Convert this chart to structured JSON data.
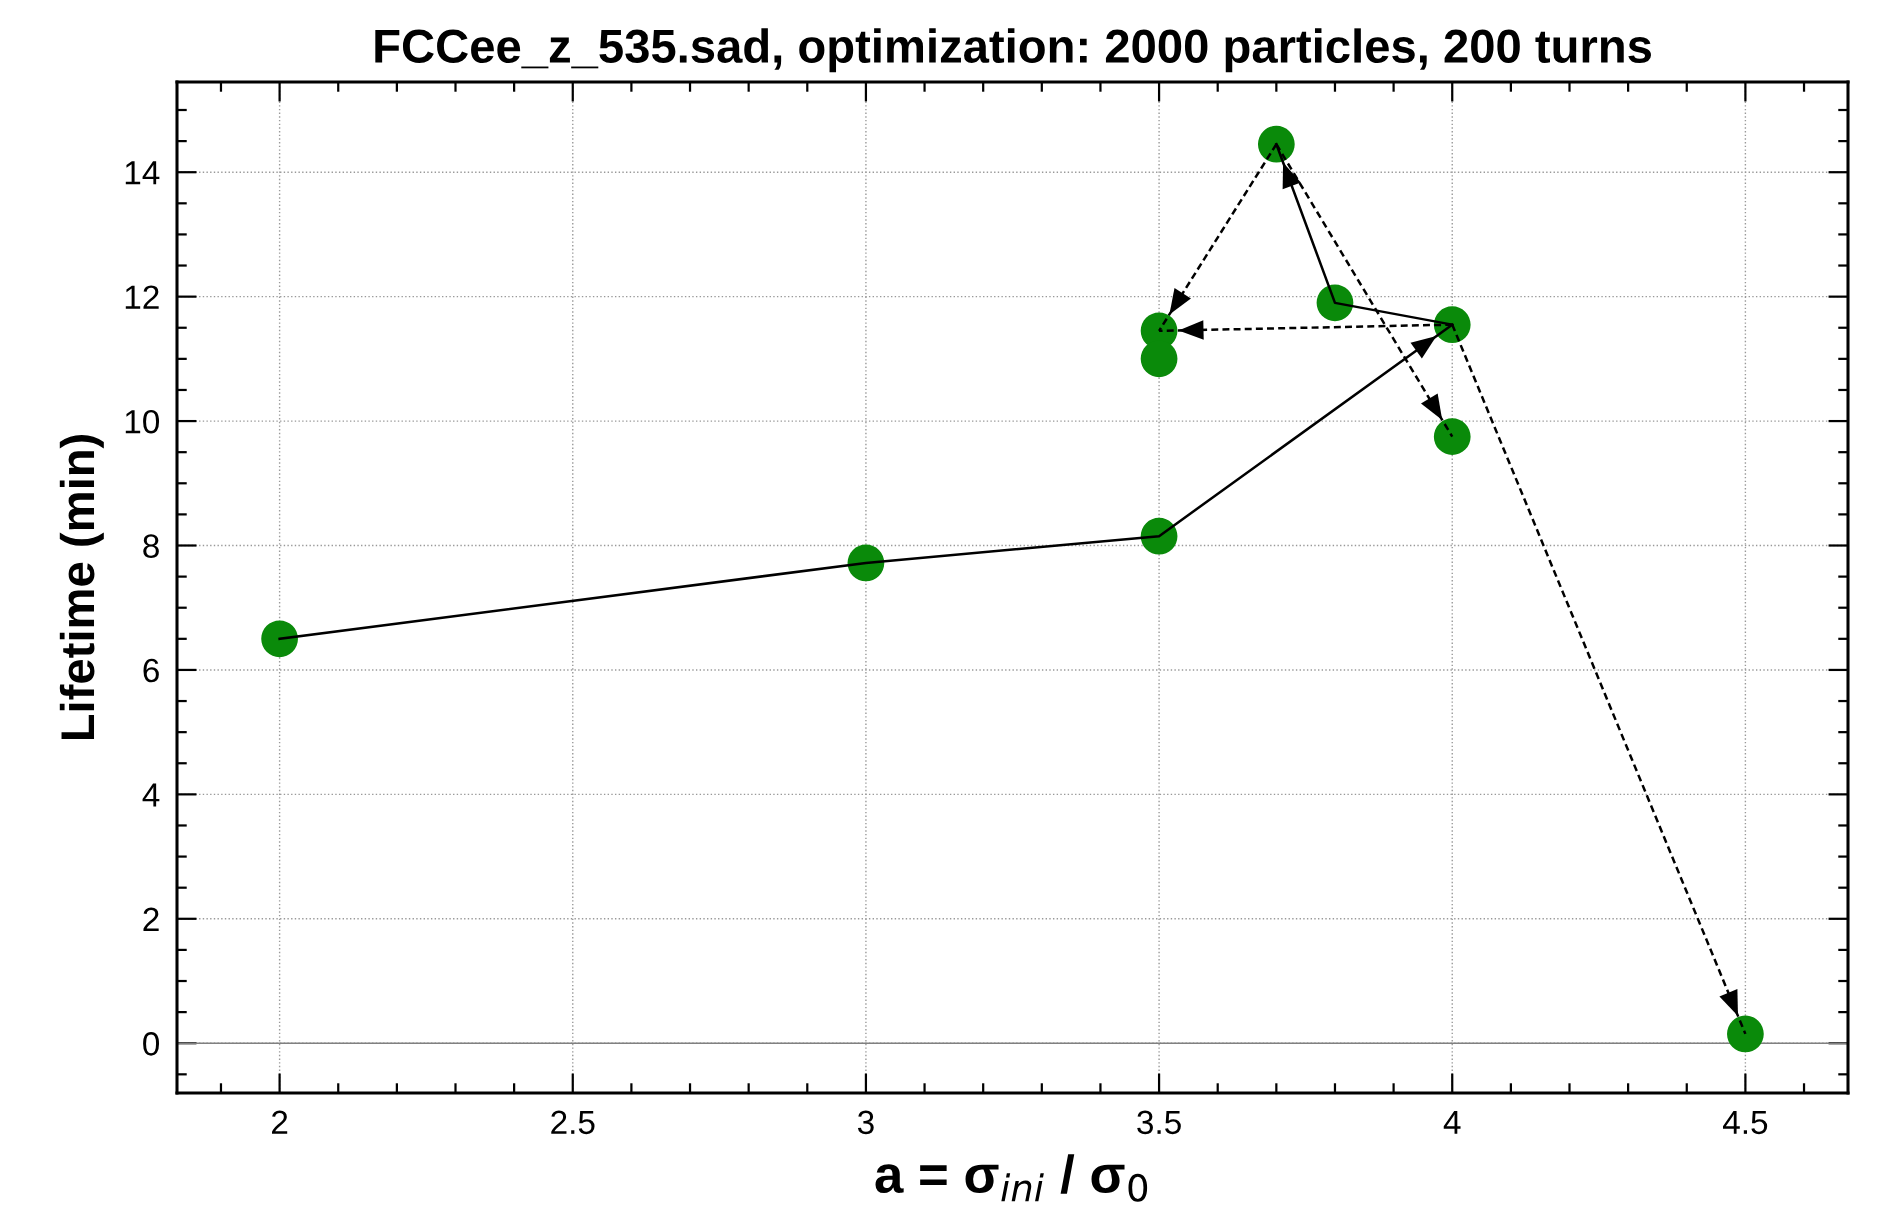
{
  "chart_data": {
    "type": "line",
    "title": "FCCee_z_535.sad, optimization: 2000 particles, 200 turns",
    "xlabel": "a = σ$_{ini}$ / σ$_{0}$",
    "ylabel": "Lifetime (min)",
    "xlim": [
      1.825,
      4.675
    ],
    "xticks": [
      2,
      2.5,
      3,
      3.5,
      4,
      4.5
    ],
    "ylim": [
      -0.8,
      15.45
    ],
    "yticks": [
      0,
      2,
      4,
      6,
      8,
      10,
      12,
      14
    ],
    "grid": true,
    "legend": false,
    "ref_lines": [
      {
        "axis": "y",
        "value": 0,
        "label": null,
        "color": "#808080",
        "line_style": "solid"
      }
    ],
    "series": [
      {
        "color": "#000000",
        "line_style": "solid",
        "x": [
          2,
          3,
          3.5,
          4
        ],
        "values": [
          6.5,
          7.72,
          8.15,
          11.55
        ]
      },
      {
        "color": "#000000",
        "line_style": "solid",
        "x": [
          4,
          3.8,
          3.7
        ],
        "values": [
          11.55,
          11.9,
          14.45
        ]
      },
      {
        "color": "#000000",
        "line_style": "dashed",
        "x": [
          3.7,
          3.5
        ],
        "values": [
          14.45,
          11.45
        ]
      },
      {
        "color": "#000000",
        "line_style": "dashed",
        "x": [
          4,
          3.5
        ],
        "values": [
          11.55,
          11.45
        ]
      },
      {
        "color": "#000000",
        "line_style": "dashed",
        "x": [
          3.7,
          4
        ],
        "values": [
          14.45,
          9.75
        ]
      },
      {
        "color": "#000000",
        "line_style": "dashed",
        "x": [
          4,
          4.5
        ],
        "values": [
          11.55,
          0.15
        ]
      },
      {
        "type": "scatter",
        "color": "#0a8a0a",
        "marker": "circle",
        "x": [
          2,
          3,
          3.5,
          4,
          3.8,
          3.7,
          3.5,
          3.5,
          4,
          4.5
        ],
        "values": [
          6.5,
          7.72,
          8.15,
          11.55,
          11.9,
          14.45,
          11.45,
          11.0,
          9.75,
          0.15
        ]
      }
    ]
  }
}
